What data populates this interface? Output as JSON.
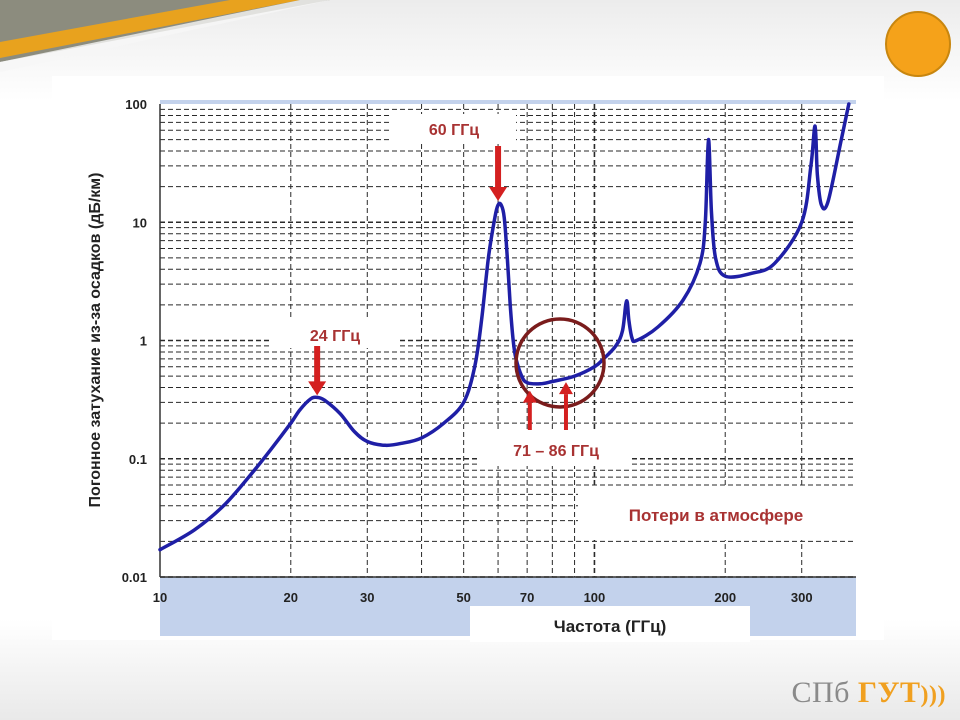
{
  "chart_data": {
    "type": "line",
    "title": "",
    "xlabel": "Частота (ГГц)",
    "ylabel": "Погонное затухание из-за осадков (дБ/км)",
    "x_scale": "log",
    "y_scale": "log",
    "xlim": [
      10,
      400
    ],
    "ylim": [
      0.01,
      100
    ],
    "x_ticks": [
      {
        "value": 10,
        "label": "10"
      },
      {
        "value": 20,
        "label": "20"
      },
      {
        "value": 30,
        "label": "30"
      },
      {
        "value": 50,
        "label": "50"
      },
      {
        "value": 70,
        "label": "70"
      },
      {
        "value": 100,
        "label": "100"
      },
      {
        "value": 200,
        "label": "200"
      },
      {
        "value": 300,
        "label": "300"
      }
    ],
    "y_ticks": [
      {
        "value": 0.01,
        "label": "0.01"
      },
      {
        "value": 0.1,
        "label": "0.1"
      },
      {
        "value": 1,
        "label": "1"
      },
      {
        "value": 10,
        "label": "10"
      },
      {
        "value": 100,
        "label": "100"
      }
    ],
    "grid": true,
    "series": [
      {
        "name": "",
        "color": "#1f1fa6",
        "points": [
          [
            10,
            0.017
          ],
          [
            12,
            0.025
          ],
          [
            14,
            0.04
          ],
          [
            16,
            0.07
          ],
          [
            18,
            0.12
          ],
          [
            20,
            0.2
          ],
          [
            21,
            0.26
          ],
          [
            22.2,
            0.32
          ],
          [
            23,
            0.33
          ],
          [
            24,
            0.31
          ],
          [
            26,
            0.24
          ],
          [
            28,
            0.17
          ],
          [
            30,
            0.14
          ],
          [
            33,
            0.13
          ],
          [
            36,
            0.135
          ],
          [
            40,
            0.15
          ],
          [
            45,
            0.2
          ],
          [
            50,
            0.3
          ],
          [
            53,
            0.6
          ],
          [
            55,
            1.5
          ],
          [
            57,
            5
          ],
          [
            59,
            11
          ],
          [
            60,
            14
          ],
          [
            61,
            14
          ],
          [
            62,
            11
          ],
          [
            63,
            5
          ],
          [
            64,
            2
          ],
          [
            65,
            1
          ],
          [
            66,
            0.7
          ],
          [
            68,
            0.5
          ],
          [
            70,
            0.44
          ],
          [
            75,
            0.43
          ],
          [
            80,
            0.45
          ],
          [
            90,
            0.5
          ],
          [
            100,
            0.6
          ],
          [
            105,
            0.7
          ],
          [
            112,
            0.9
          ],
          [
            116,
            1.2
          ],
          [
            118,
            2.0
          ],
          [
            119,
            2.1
          ],
          [
            120,
            1.5
          ],
          [
            122,
            1.05
          ],
          [
            125,
            1.0
          ],
          [
            140,
            1.3
          ],
          [
            160,
            2.2
          ],
          [
            175,
            4.5
          ],
          [
            180,
            10
          ],
          [
            183,
            50
          ],
          [
            186,
            12
          ],
          [
            190,
            5
          ],
          [
            200,
            3.5
          ],
          [
            230,
            3.7
          ],
          [
            260,
            4.5
          ],
          [
            300,
            10
          ],
          [
            315,
            30
          ],
          [
            322,
            65
          ],
          [
            326,
            25
          ],
          [
            333,
            14
          ],
          [
            345,
            15
          ],
          [
            370,
            50
          ],
          [
            385,
            100
          ]
        ]
      }
    ],
    "annotations": [
      {
        "text": "24 ГГц",
        "x": 23,
        "y": 0.33,
        "type": "arrow-down"
      },
      {
        "text": "60 ГГц",
        "x": 60,
        "y": 14,
        "type": "arrow-down"
      },
      {
        "text": "71 – 86 ГГц",
        "x": [
          71,
          86
        ],
        "y": 0.44,
        "type": "arrows-up-circle"
      },
      {
        "text": "Потери в атмосфере",
        "type": "label"
      }
    ]
  },
  "brand": {
    "part1": "СПб",
    "part2": "ГУТ",
    "waves": ")))"
  }
}
